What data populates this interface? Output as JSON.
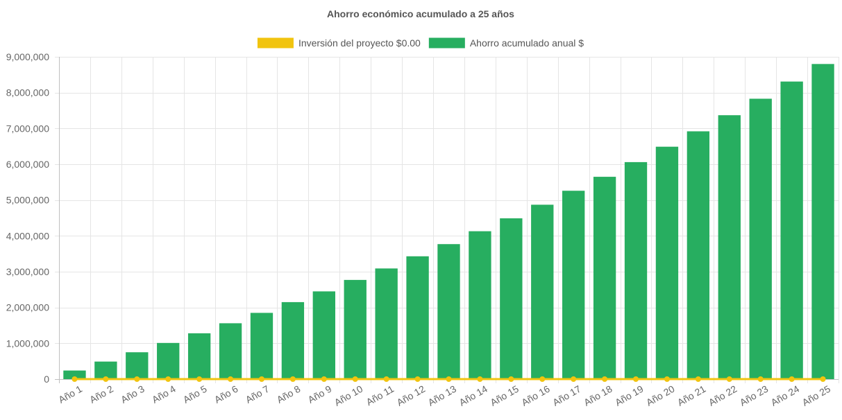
{
  "chart_data": {
    "type": "bar",
    "title": "Ahorro económico acumulado a 25 años",
    "categories": [
      "Año 1",
      "Año 2",
      "Año 3",
      "Año 4",
      "Año 5",
      "Año 6",
      "Año 7",
      "Año 8",
      "Año 9",
      "Año 10",
      "Año 11",
      "Año 12",
      "Año 13",
      "Año 14",
      "Año 15",
      "Año 16",
      "Año 17",
      "Año 18",
      "Año 19",
      "Año 20",
      "Año 21",
      "Año 22",
      "Año 23",
      "Año 24",
      "Año 25"
    ],
    "series": [
      {
        "name": "Inversión del proyecto $0.00",
        "type": "line",
        "color": "#f1c40f",
        "values": [
          0,
          0,
          0,
          0,
          0,
          0,
          0,
          0,
          0,
          0,
          0,
          0,
          0,
          0,
          0,
          0,
          0,
          0,
          0,
          0,
          0,
          0,
          0,
          0,
          0
        ]
      },
      {
        "name": "Ahorro acumulado anual $",
        "type": "bar",
        "color": "#27ae60",
        "values": [
          240000,
          490000,
          750000,
          1010000,
          1280000,
          1560000,
          1850000,
          2150000,
          2450000,
          2770000,
          3090000,
          3430000,
          3770000,
          4130000,
          4490000,
          4870000,
          5260000,
          5650000,
          6060000,
          6490000,
          6920000,
          7370000,
          7830000,
          8310000,
          8800000
        ]
      }
    ],
    "xlabel": "",
    "ylabel": "",
    "ylim": [
      0,
      9000000
    ],
    "yticks": [
      "0",
      "1,000,000",
      "2,000,000",
      "3,000,000",
      "4,000,000",
      "5,000,000",
      "6,000,000",
      "7,000,000",
      "8,000,000",
      "9,000,000"
    ],
    "grid": true,
    "legend_position": "top"
  }
}
